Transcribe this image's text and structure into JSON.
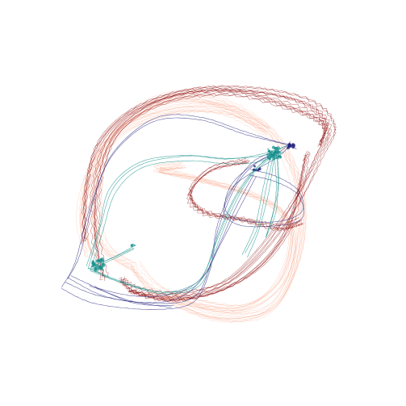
{
  "artwork": {
    "background": "#ffffff",
    "families": [
      {
        "name": "salmon",
        "color": "#fa8a62",
        "opacity": 0.35,
        "width": 0.5,
        "copies": 34,
        "jitter": 4.5,
        "wave": 0.6
      },
      {
        "name": "darkred",
        "color": "#8b0000",
        "opacity": 0.55,
        "width": 0.55,
        "copies": 22,
        "jitter": 3.2,
        "wave": 1.4
      },
      {
        "name": "navy",
        "color": "#1c1d7a",
        "opacity": 0.7,
        "width": 0.6,
        "copies": 9,
        "jitter": 3.5,
        "wave": 0.2
      },
      {
        "name": "teal",
        "color": "#138f8a",
        "opacity": 0.75,
        "width": 0.6,
        "copies": 14,
        "jitter": 2.8,
        "wave": 0.2
      }
    ]
  }
}
